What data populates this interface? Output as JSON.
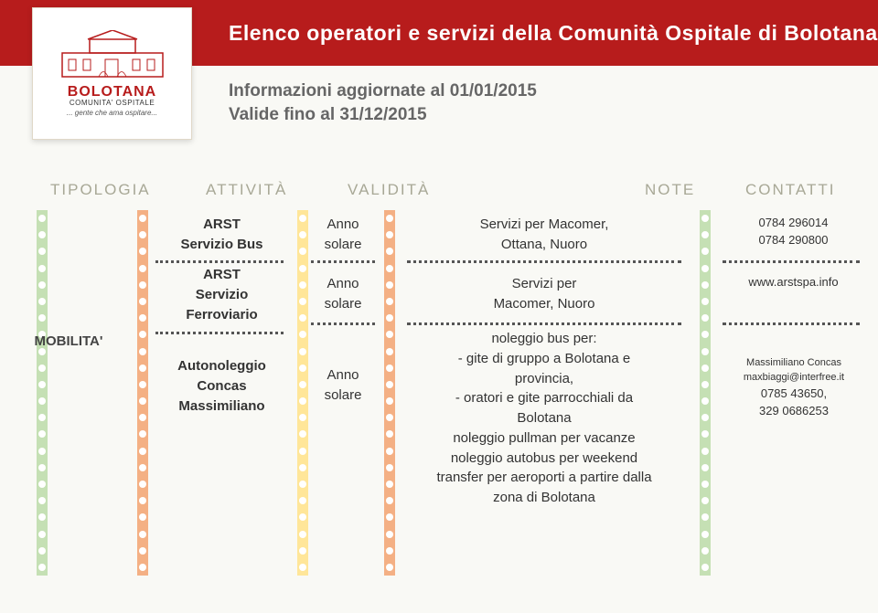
{
  "header": {
    "title": "Elenco operatori e servizi della Comunità Ospitale di Bolotana"
  },
  "logo": {
    "main": "BOLOTANA",
    "sub": "COMUNITA' OSPITALE",
    "tagline": "... gente che ama ospitare..."
  },
  "subheader": {
    "line1": "Informazioni aggiornate al 01/01/2015",
    "line2": "Valide fino al  31/12/2015"
  },
  "columns": {
    "c1": "TIPOLOGIA",
    "c2": "ATTIVITÀ",
    "c3": "VALIDITÀ",
    "c4": "NOTE",
    "c5": "CONTATTI"
  },
  "category": "MOBILITA'",
  "rows": [
    {
      "attivita": "ARST\nServizio Bus",
      "validita": "Anno\nsolare",
      "note": "Servizi per Macomer,\nOttana, Nuoro",
      "contatti": "0784 296014\n0784 290800"
    },
    {
      "attivita": "ARST\nServizio\nFerroviario",
      "validita": "Anno\nsolare",
      "note": "Servizi per\nMacomer, Nuoro",
      "contatti": "www.arstspa.info"
    },
    {
      "attivita": "Autonoleggio\nConcas\nMassimiliano",
      "validita": "Anno\nsolare",
      "note": "noleggio bus per:\n- gite di gruppo a Bolotana e\nprovincia,\n- oratori e gite parrocchiali da\nBolotana\nnoleggio pullman per vacanze\nnoleggio autobus per weekend\ntransfer per aeroporti a partire dalla\nzona di Bolotana",
      "contatti_line1": "Massimiliano Concas",
      "contatti_line2": "maxbiaggi@interfree.it",
      "contatti_line3": "0785 43650,",
      "contatti_line4": "329 0686253"
    }
  ]
}
